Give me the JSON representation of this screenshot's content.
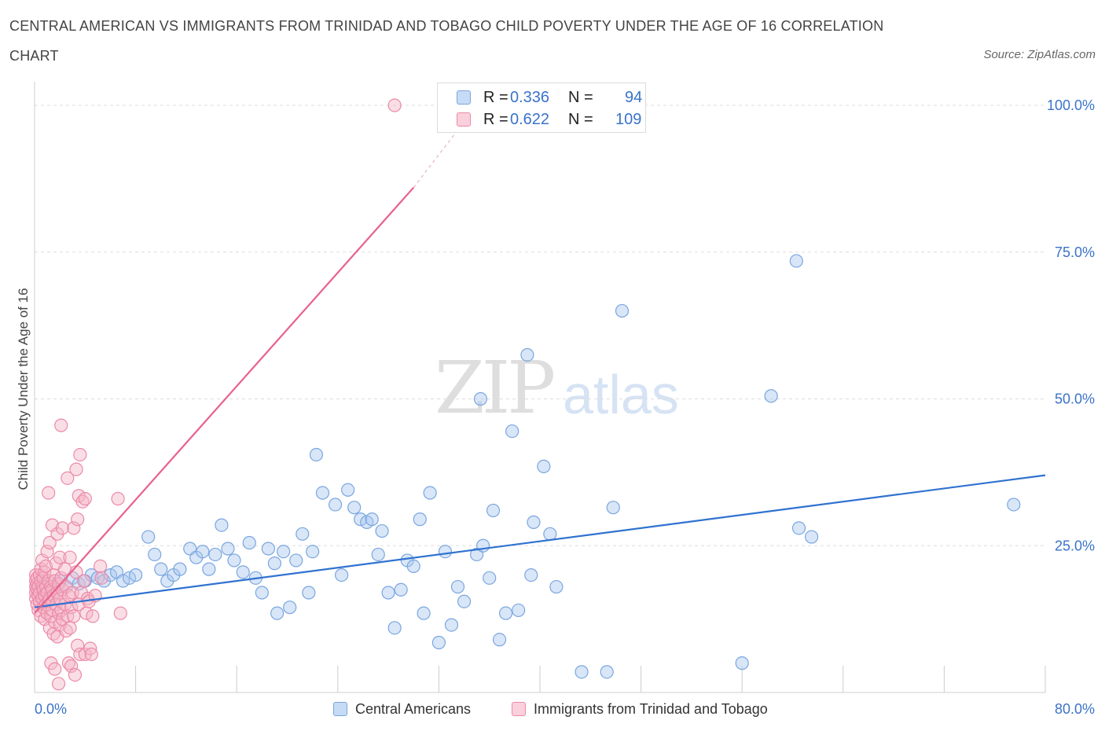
{
  "header": {
    "title": "CENTRAL AMERICAN VS IMMIGRANTS FROM TRINIDAD AND TOBAGO CHILD POVERTY UNDER THE AGE OF 16 CORRELATION CHART",
    "source": "Source: ZipAtlas.com"
  },
  "watermark": {
    "zip": "ZIP",
    "atlas": "atlas"
  },
  "legend_top": {
    "rows": [
      {
        "r_label": "R =",
        "r_value": "0.336",
        "n_label": "N =",
        "n_value": "94",
        "color": "#a9c7ef"
      },
      {
        "r_label": "R =",
        "r_value": "0.622",
        "n_label": "N =",
        "n_value": "109",
        "color": "#f4b5c8"
      }
    ]
  },
  "legend_bottom": {
    "items": [
      {
        "label": "Central Americans",
        "color": "#a9c7ef"
      },
      {
        "label": "Immigrants from Trinidad and Tobago",
        "color": "#f4b5c8"
      }
    ]
  },
  "colors": {
    "blue_fill": "#a9c7ef",
    "blue_stroke": "#7aa6df",
    "blue_line": "#2f72d0",
    "pink_fill": "#f4b5c8",
    "pink_stroke": "#ec8aa8",
    "pink_line": "#e8628e",
    "grid": "#dddddd",
    "tick_label": "#3a73c8"
  },
  "chart_data": {
    "type": "scatter",
    "title": "CENTRAL AMERICAN VS IMMIGRANTS FROM TRINIDAD AND TOBAGO CHILD POVERTY UNDER THE AGE OF 16 CORRELATION CHART",
    "xlabel": "",
    "ylabel": "Child Poverty Under the Age of 16",
    "xlim": [
      0,
      80
    ],
    "ylim": [
      0,
      100
    ],
    "x_tick_labels": [
      {
        "value": 0,
        "label": "0.0%"
      },
      {
        "value": 80,
        "label": "80.0%"
      }
    ],
    "y_tick_labels": [
      {
        "value": 25,
        "label": "25.0%"
      },
      {
        "value": 50,
        "label": "50.0%"
      },
      {
        "value": 75,
        "label": "75.0%"
      },
      {
        "value": 100,
        "label": "100.0%"
      }
    ],
    "grid": true,
    "legend_position": "top-center",
    "series": [
      {
        "name": "Central Americans",
        "R": 0.336,
        "N": 94,
        "trend": {
          "x": [
            0,
            80
          ],
          "y": [
            14.5,
            37.0
          ]
        },
        "points": [
          [
            0.3,
            18.0
          ],
          [
            0.5,
            16.5
          ],
          [
            0.8,
            17.5
          ],
          [
            1.2,
            18.5
          ],
          [
            1.5,
            17.0
          ],
          [
            2.0,
            19.0
          ],
          [
            2.5,
            18.0
          ],
          [
            3.0,
            19.5
          ],
          [
            3.5,
            18.5
          ],
          [
            4.0,
            19.0
          ],
          [
            4.5,
            20.0
          ],
          [
            5.0,
            19.5
          ],
          [
            5.5,
            19.0
          ],
          [
            6.0,
            20.0
          ],
          [
            6.5,
            20.5
          ],
          [
            7.0,
            19.0
          ],
          [
            7.5,
            19.5
          ],
          [
            8.0,
            20.0
          ],
          [
            9.0,
            26.5
          ],
          [
            9.5,
            23.5
          ],
          [
            10.0,
            21.0
          ],
          [
            10.5,
            19.0
          ],
          [
            11.0,
            20.0
          ],
          [
            11.5,
            21.0
          ],
          [
            12.3,
            24.5
          ],
          [
            12.8,
            23.0
          ],
          [
            13.3,
            24.0
          ],
          [
            13.8,
            21.0
          ],
          [
            14.3,
            23.5
          ],
          [
            14.8,
            28.5
          ],
          [
            15.3,
            24.5
          ],
          [
            15.8,
            22.5
          ],
          [
            16.5,
            20.5
          ],
          [
            17.0,
            25.5
          ],
          [
            17.5,
            19.5
          ],
          [
            18.0,
            17.0
          ],
          [
            18.5,
            24.5
          ],
          [
            19.0,
            22.0
          ],
          [
            19.2,
            13.5
          ],
          [
            19.7,
            24.0
          ],
          [
            20.2,
            14.5
          ],
          [
            20.7,
            22.5
          ],
          [
            21.2,
            27.0
          ],
          [
            21.7,
            17.0
          ],
          [
            22.0,
            24.0
          ],
          [
            22.3,
            40.5
          ],
          [
            22.8,
            34.0
          ],
          [
            23.8,
            32.0
          ],
          [
            24.3,
            20.0
          ],
          [
            24.8,
            34.5
          ],
          [
            25.3,
            31.5
          ],
          [
            25.8,
            29.5
          ],
          [
            26.3,
            29.0
          ],
          [
            26.7,
            29.5
          ],
          [
            27.2,
            23.5
          ],
          [
            27.5,
            27.5
          ],
          [
            28.0,
            17.0
          ],
          [
            28.5,
            11.0
          ],
          [
            29.0,
            17.5
          ],
          [
            29.5,
            22.5
          ],
          [
            30.0,
            21.5
          ],
          [
            30.5,
            29.5
          ],
          [
            30.8,
            13.5
          ],
          [
            31.3,
            34.0
          ],
          [
            32.0,
            8.5
          ],
          [
            32.5,
            24.0
          ],
          [
            33.0,
            11.5
          ],
          [
            33.5,
            18.0
          ],
          [
            34.0,
            15.5
          ],
          [
            35.0,
            23.5
          ],
          [
            35.5,
            25.0
          ],
          [
            35.3,
            50.0
          ],
          [
            36.0,
            19.5
          ],
          [
            36.3,
            31.0
          ],
          [
            36.8,
            9.0
          ],
          [
            37.3,
            13.5
          ],
          [
            37.8,
            44.5
          ],
          [
            38.3,
            14.0
          ],
          [
            39.0,
            57.5
          ],
          [
            39.5,
            29.0
          ],
          [
            39.3,
            20.0
          ],
          [
            40.3,
            38.5
          ],
          [
            40.8,
            27.0
          ],
          [
            41.3,
            18.0
          ],
          [
            43.3,
            3.5
          ],
          [
            45.3,
            3.5
          ],
          [
            45.8,
            31.5
          ],
          [
            46.5,
            65.0
          ],
          [
            56.0,
            5.0
          ],
          [
            58.3,
            50.5
          ],
          [
            60.3,
            73.5
          ],
          [
            60.5,
            28.0
          ],
          [
            61.5,
            26.5
          ],
          [
            77.5,
            32.0
          ]
        ]
      },
      {
        "name": "Immigrants from Trinidad and Tobago",
        "R": 0.622,
        "N": 109,
        "trend": {
          "x": [
            0,
            30
          ],
          "y": [
            13.5,
            86.0
          ]
        },
        "trend_dashed": {
          "x": [
            30,
            35
          ],
          "y": [
            86.0,
            100.0
          ]
        },
        "points": [
          [
            0.1,
            16.0
          ],
          [
            0.1,
            17.0
          ],
          [
            0.1,
            18.0
          ],
          [
            0.1,
            19.0
          ],
          [
            0.1,
            20.0
          ],
          [
            0.2,
            15.0
          ],
          [
            0.2,
            17.5
          ],
          [
            0.2,
            18.5
          ],
          [
            0.2,
            19.5
          ],
          [
            0.3,
            16.5
          ],
          [
            0.3,
            14.0
          ],
          [
            0.3,
            18.0
          ],
          [
            0.4,
            20.0
          ],
          [
            0.4,
            15.5
          ],
          [
            0.4,
            17.0
          ],
          [
            0.5,
            19.0
          ],
          [
            0.5,
            13.0
          ],
          [
            0.5,
            21.0
          ],
          [
            0.6,
            16.0
          ],
          [
            0.6,
            18.0
          ],
          [
            0.6,
            22.5
          ],
          [
            0.7,
            14.5
          ],
          [
            0.7,
            17.5
          ],
          [
            0.7,
            19.5
          ],
          [
            0.8,
            12.5
          ],
          [
            0.8,
            16.5
          ],
          [
            0.8,
            20.5
          ],
          [
            0.9,
            15.0
          ],
          [
            0.9,
            18.0
          ],
          [
            0.9,
            21.5
          ],
          [
            1.0,
            13.5
          ],
          [
            1.0,
            17.0
          ],
          [
            1.0,
            24.0
          ],
          [
            1.1,
            15.5
          ],
          [
            1.1,
            19.0
          ],
          [
            1.1,
            34.0
          ],
          [
            1.2,
            11.0
          ],
          [
            1.2,
            16.0
          ],
          [
            1.2,
            25.5
          ],
          [
            1.3,
            13.0
          ],
          [
            1.3,
            18.0
          ],
          [
            1.3,
            5.0
          ],
          [
            1.4,
            14.0
          ],
          [
            1.4,
            17.5
          ],
          [
            1.4,
            28.5
          ],
          [
            1.5,
            10.0
          ],
          [
            1.5,
            16.5
          ],
          [
            1.5,
            20.0
          ],
          [
            1.6,
            12.0
          ],
          [
            1.6,
            19.0
          ],
          [
            1.6,
            4.0
          ],
          [
            1.7,
            15.0
          ],
          [
            1.7,
            22.0
          ],
          [
            1.8,
            9.5
          ],
          [
            1.8,
            17.0
          ],
          [
            1.8,
            27.0
          ],
          [
            1.9,
            13.5
          ],
          [
            1.9,
            18.5
          ],
          [
            1.9,
            1.5
          ],
          [
            2.0,
            11.5
          ],
          [
            2.0,
            16.0
          ],
          [
            2.0,
            23.0
          ],
          [
            2.1,
            14.0
          ],
          [
            2.1,
            19.5
          ],
          [
            2.1,
            45.5
          ],
          [
            2.2,
            12.5
          ],
          [
            2.2,
            17.5
          ],
          [
            2.2,
            28.0
          ],
          [
            2.4,
            15.0
          ],
          [
            2.4,
            21.0
          ],
          [
            2.5,
            10.5
          ],
          [
            2.5,
            18.0
          ],
          [
            2.6,
            36.5
          ],
          [
            2.6,
            13.0
          ],
          [
            2.7,
            5.0
          ],
          [
            2.7,
            16.5
          ],
          [
            2.8,
            11.0
          ],
          [
            2.8,
            23.0
          ],
          [
            2.9,
            14.5
          ],
          [
            2.9,
            4.5
          ],
          [
            3.0,
            17.0
          ],
          [
            3.1,
            13.0
          ],
          [
            3.1,
            28.0
          ],
          [
            3.2,
            3.0
          ],
          [
            3.3,
            38.0
          ],
          [
            3.3,
            20.5
          ],
          [
            3.4,
            29.5
          ],
          [
            3.4,
            8.0
          ],
          [
            3.5,
            15.0
          ],
          [
            3.5,
            33.5
          ],
          [
            3.6,
            6.5
          ],
          [
            3.6,
            40.5
          ],
          [
            3.7,
            17.0
          ],
          [
            3.8,
            32.5
          ],
          [
            3.9,
            19.0
          ],
          [
            4.0,
            6.5
          ],
          [
            4.0,
            33.0
          ],
          [
            4.1,
            13.5
          ],
          [
            4.2,
            16.0
          ],
          [
            4.3,
            15.5
          ],
          [
            4.4,
            7.5
          ],
          [
            4.5,
            6.5
          ],
          [
            4.6,
            13.0
          ],
          [
            4.8,
            16.5
          ],
          [
            5.2,
            21.5
          ],
          [
            5.3,
            19.5
          ],
          [
            6.6,
            33.0
          ],
          [
            6.8,
            13.5
          ],
          [
            28.5,
            100.0
          ]
        ]
      }
    ]
  }
}
